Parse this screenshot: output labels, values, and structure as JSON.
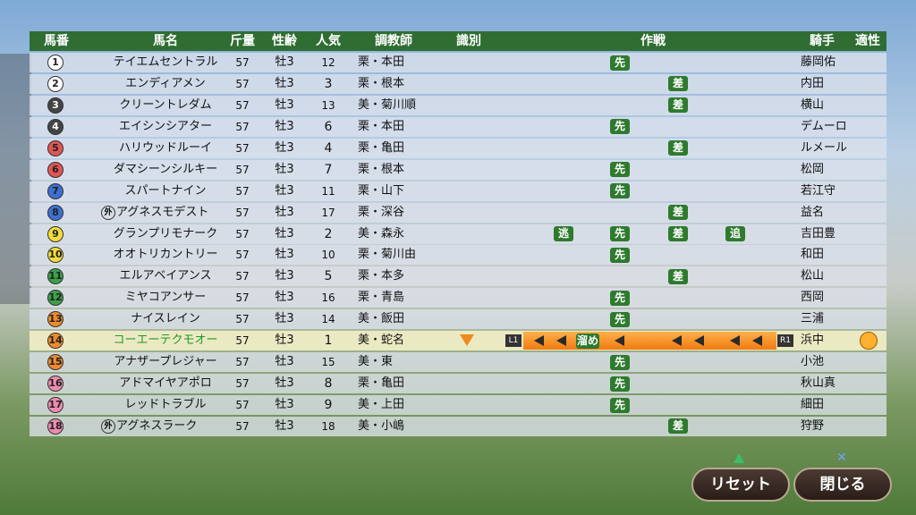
{
  "header": {
    "columns": [
      "馬番",
      "馬名",
      "斤量",
      "性齢",
      "人気",
      "調教師",
      "識別",
      "作戦",
      "騎手",
      "適性"
    ]
  },
  "rows": [
    {
      "no": 1,
      "name": "テイエムセントラル",
      "weight": 57,
      "sex_age": "牡3",
      "popularity": 12,
      "trainer": "栗・本田",
      "strategy": [
        null,
        "先",
        null,
        null
      ],
      "jockey": "藤岡佑"
    },
    {
      "no": 2,
      "name": "エンディアメン",
      "weight": 57,
      "sex_age": "牡3",
      "popularity": 3,
      "trainer": "栗・根本",
      "strategy": [
        null,
        null,
        "差",
        null
      ],
      "jockey": "内田"
    },
    {
      "no": 3,
      "name": "クリーントレダム",
      "weight": 57,
      "sex_age": "牡3",
      "popularity": 13,
      "trainer": "美・菊川順",
      "strategy": [
        null,
        null,
        "差",
        null
      ],
      "jockey": "横山"
    },
    {
      "no": 4,
      "name": "エイシンシアター",
      "weight": 57,
      "sex_age": "牡3",
      "popularity": 6,
      "trainer": "栗・本田",
      "strategy": [
        null,
        "先",
        null,
        null
      ],
      "jockey": "デムーロ"
    },
    {
      "no": 5,
      "name": "ハリウッドルーイ",
      "weight": 57,
      "sex_age": "牡3",
      "popularity": 4,
      "trainer": "栗・亀田",
      "strategy": [
        null,
        null,
        "差",
        null
      ],
      "jockey": "ルメール"
    },
    {
      "no": 6,
      "name": "ダマシーンシルキー",
      "weight": 57,
      "sex_age": "牡3",
      "popularity": 7,
      "trainer": "栗・根本",
      "strategy": [
        null,
        "先",
        null,
        null
      ],
      "jockey": "松岡"
    },
    {
      "no": 7,
      "name": "スパートナイン",
      "weight": 57,
      "sex_age": "牡3",
      "popularity": 11,
      "trainer": "栗・山下",
      "strategy": [
        null,
        "先",
        null,
        null
      ],
      "jockey": "若江守"
    },
    {
      "no": 8,
      "prefix": "外",
      "name": "アグネスモデスト",
      "weight": 57,
      "sex_age": "牡3",
      "popularity": 17,
      "trainer": "栗・深谷",
      "strategy": [
        null,
        null,
        "差",
        null
      ],
      "jockey": "益名"
    },
    {
      "no": 9,
      "name": "グランプリモナーク",
      "weight": 57,
      "sex_age": "牡3",
      "popularity": 2,
      "trainer": "美・森永",
      "strategy": [
        "逃",
        "先",
        "差",
        "追"
      ],
      "jockey": "吉田豊"
    },
    {
      "no": 10,
      "name": "オオトリカントリー",
      "weight": 57,
      "sex_age": "牡3",
      "popularity": 10,
      "trainer": "栗・菊川由",
      "strategy": [
        null,
        "先",
        null,
        null
      ],
      "jockey": "和田"
    },
    {
      "no": 11,
      "name": "エルアベイアンス",
      "weight": 57,
      "sex_age": "牡3",
      "popularity": 5,
      "trainer": "栗・本多",
      "strategy": [
        null,
        null,
        "差",
        null
      ],
      "jockey": "松山"
    },
    {
      "no": 12,
      "name": "ミヤコアンサー",
      "weight": 57,
      "sex_age": "牡3",
      "popularity": 16,
      "trainer": "栗・青島",
      "strategy": [
        null,
        "先",
        null,
        null
      ],
      "jockey": "西岡"
    },
    {
      "no": 13,
      "name": "ナイスレイン",
      "weight": 57,
      "sex_age": "牡3",
      "popularity": 14,
      "trainer": "美・飯田",
      "strategy": [
        null,
        "先",
        null,
        null
      ],
      "jockey": "三浦"
    },
    {
      "no": 14,
      "name": "コーエーテクモオー",
      "weight": 57,
      "sex_age": "牡3",
      "popularity": 1,
      "trainer": "美・蛇名",
      "selected": true,
      "plan": {
        "left": "L1",
        "label": "溜め",
        "right": "R1"
      },
      "jockey": "浜中"
    },
    {
      "no": 15,
      "name": "アナザープレジャー",
      "weight": 57,
      "sex_age": "牡3",
      "popularity": 15,
      "trainer": "美・東",
      "strategy": [
        null,
        "先",
        null,
        null
      ],
      "jockey": "小池"
    },
    {
      "no": 16,
      "name": "アドマイヤアポロ",
      "weight": 57,
      "sex_age": "牡3",
      "popularity": 8,
      "trainer": "栗・亀田",
      "strategy": [
        null,
        "先",
        null,
        null
      ],
      "jockey": "秋山真"
    },
    {
      "no": 17,
      "name": "レッドトラブル",
      "weight": 57,
      "sex_age": "牡3",
      "popularity": 9,
      "trainer": "美・上田",
      "strategy": [
        null,
        "先",
        null,
        null
      ],
      "jockey": "細田"
    },
    {
      "no": 18,
      "prefix": "外",
      "name": "アグネスラーク",
      "weight": 57,
      "sex_age": "牡3",
      "popularity": 18,
      "trainer": "美・小嶋",
      "strategy": [
        null,
        null,
        "差",
        null
      ],
      "jockey": "狩野"
    }
  ],
  "buttons": [
    {
      "label": "リセット"
    },
    {
      "label": "閉じる"
    }
  ]
}
